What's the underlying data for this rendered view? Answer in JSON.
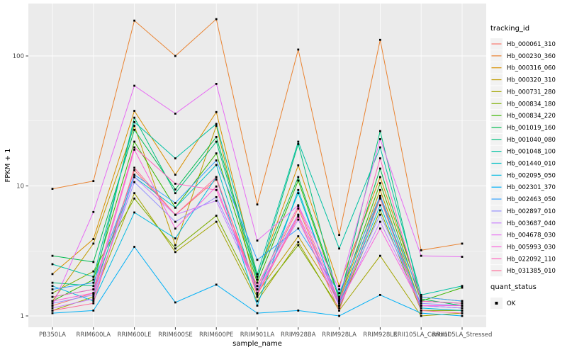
{
  "figure": {
    "xlabel": "sample_name",
    "ylabel": "FPKM + 1",
    "legend_title": "tracking_id",
    "marker_legend_title": "quant_status",
    "marker_legend_item": "OK"
  },
  "colors": {
    "panel_background": "#EBEBEB",
    "grid": "#FFFFFF",
    "tick_text": "#4D4D4D",
    "title_text": "#000000",
    "marker": "#000000",
    "legend_key_background": "#F2F2F2"
  },
  "chart_data": {
    "type": "line",
    "title": "",
    "xlabel": "sample_name",
    "ylabel": "FPKM + 1",
    "y_scale": "log10",
    "y_ticks": [
      1,
      10,
      100
    ],
    "y_minor_gridlines": [
      3.1623,
      31.623
    ],
    "ylim": [
      0.95,
      253
    ],
    "grid": true,
    "legend_position": "right",
    "legend_title": "tracking_id",
    "marker_legend": {
      "title": "quant_status",
      "items": [
        "OK"
      ]
    },
    "categories": [
      "PB350LA",
      "RRIM600LA",
      "RRIM600LE",
      "RRIM600SE",
      "RRIM600PE",
      "RRIM901LA",
      "RRIM928BA",
      "RRIM928LA",
      "RRIM928LE",
      "RRII105LA_Control",
      "RRII105LA_Stressed"
    ],
    "series": [
      {
        "name": "Hb_000061_310",
        "color": "#F8766D",
        "values": [
          1.2,
          1.5,
          13.2,
          6.0,
          11.2,
          1.6,
          6.7,
          1.2,
          8.4,
          1.1,
          1.1
        ]
      },
      {
        "name": "Hb_000230_360",
        "color": "#EA8331",
        "values": [
          9.5,
          10.9,
          187,
          100,
          192,
          7.2,
          112,
          4.2,
          133,
          3.2,
          3.6
        ]
      },
      {
        "name": "Hb_000316_060",
        "color": "#D89000",
        "values": [
          2.1,
          3.9,
          37.8,
          12.2,
          37,
          2.0,
          14.4,
          1.7,
          11.7,
          1.4,
          1.3
        ]
      },
      {
        "name": "Hb_000320_310",
        "color": "#C09B00",
        "values": [
          1.3,
          3.6,
          29,
          3.5,
          29,
          1.5,
          4.1,
          1.3,
          9.3,
          1.2,
          1.2
        ]
      },
      {
        "name": "Hb_000731_280",
        "color": "#A3A500",
        "values": [
          1.1,
          1.4,
          8.8,
          3.1,
          5.3,
          1.3,
          3.7,
          1.1,
          2.9,
          1.0,
          1.05
        ]
      },
      {
        "name": "Hb_000834_180",
        "color": "#7CAE00",
        "values": [
          1.5,
          2.2,
          8.0,
          3.3,
          5.9,
          1.4,
          3.5,
          1.15,
          6.5,
          1.1,
          1.1
        ]
      },
      {
        "name": "Hb_000834_220",
        "color": "#39B600",
        "values": [
          1.3,
          1.9,
          21.9,
          6.8,
          17.8,
          1.8,
          11.0,
          1.35,
          10.5,
          1.3,
          1.65
        ]
      },
      {
        "name": "Hb_001019_160",
        "color": "#00BB4E",
        "values": [
          2.9,
          2.6,
          27,
          9.4,
          23.8,
          2.0,
          11.7,
          1.4,
          13.6,
          1.35,
          1.2
        ]
      },
      {
        "name": "Hb_001040_080",
        "color": "#00BF7D",
        "values": [
          1.8,
          1.7,
          33.5,
          8.8,
          21.9,
          1.9,
          21.0,
          1.3,
          26.4,
          1.3,
          1.25
        ]
      },
      {
        "name": "Hb_001048_100",
        "color": "#00C1A3",
        "values": [
          2.5,
          2.0,
          31,
          16.3,
          30,
          2.1,
          21.9,
          3.3,
          19.8,
          1.45,
          1.7
        ]
      },
      {
        "name": "Hb_001440_010",
        "color": "#00BFC4",
        "values": [
          1.4,
          1.6,
          11.7,
          6.8,
          14.5,
          1.5,
          8.8,
          1.25,
          8.1,
          1.2,
          1.15
        ]
      },
      {
        "name": "Hb_002095_050",
        "color": "#00BAE0",
        "values": [
          1.7,
          1.3,
          6.25,
          3.95,
          11.7,
          1.2,
          9.3,
          1.2,
          7.1,
          1.15,
          1.1
        ]
      },
      {
        "name": "Hb_002301_370",
        "color": "#00B0F6",
        "values": [
          1.05,
          1.1,
          3.4,
          1.27,
          1.74,
          1.05,
          1.1,
          1.0,
          1.45,
          1.05,
          1.0
        ]
      },
      {
        "name": "Hb_002463_050",
        "color": "#35A2FF",
        "values": [
          1.6,
          1.8,
          12.2,
          7.4,
          15.7,
          2.7,
          4.7,
          1.5,
          8.4,
          1.4,
          1.3
        ]
      },
      {
        "name": "Hb_002897_010",
        "color": "#9590FF",
        "values": [
          1.25,
          1.45,
          10.7,
          5.3,
          8.2,
          1.7,
          6.0,
          1.3,
          6.0,
          1.25,
          1.2
        ]
      },
      {
        "name": "Hb_003687_040",
        "color": "#C77CFF",
        "values": [
          1.15,
          1.35,
          11.7,
          6.0,
          7.7,
          1.6,
          5.5,
          1.2,
          5.3,
          1.2,
          1.15
        ]
      },
      {
        "name": "Hb_004678_030",
        "color": "#E76BF3",
        "values": [
          1.2,
          6.3,
          59,
          36,
          61,
          3.8,
          7.1,
          1.6,
          22.9,
          2.9,
          2.85
        ]
      },
      {
        "name": "Hb_005993_030",
        "color": "#FA62DB",
        "values": [
          1.3,
          1.5,
          19.0,
          4.7,
          9.9,
          1.5,
          6.0,
          1.25,
          4.7,
          1.2,
          1.2
        ]
      },
      {
        "name": "Hb_022092_110",
        "color": "#FF62BC",
        "values": [
          1.4,
          1.6,
          19.8,
          10.4,
          9.3,
          1.7,
          7.0,
          1.3,
          16.3,
          1.3,
          1.25
        ]
      },
      {
        "name": "Hb_031385_010",
        "color": "#FF6A98",
        "values": [
          1.1,
          1.25,
          13.8,
          6.0,
          11.7,
          1.45,
          5.8,
          1.1,
          8.0,
          1.1,
          1.05
        ]
      }
    ]
  }
}
